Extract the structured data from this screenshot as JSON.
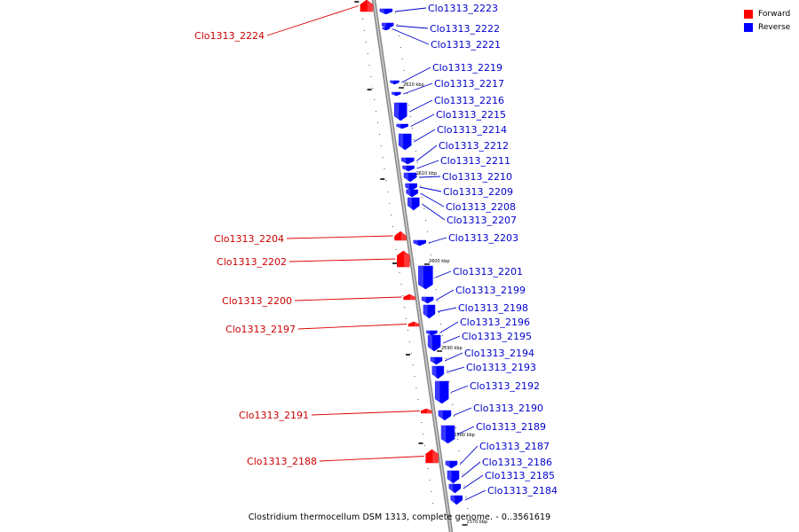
{
  "legend": {
    "forward_label": "Forward",
    "reverse_label": "Reverse",
    "forward_color": "#ff0000",
    "reverse_color": "#0000ff"
  },
  "caption": "Clostridium thermocellum DSM 1313, complete genome. - 0..3561619",
  "ticks": [
    "2620 kbp",
    "2610 kbp",
    "2600 kbp",
    "2590 kbp",
    "2580 kbp",
    "2570 kbp"
  ],
  "forward_genes": [
    "Clo1313_2224",
    "Clo1313_2204",
    "Clo1313_2202",
    "Clo1313_2200",
    "Clo1313_2197",
    "Clo1313_2191",
    "Clo1313_2188"
  ],
  "reverse_genes": [
    "Clo1313_2223",
    "Clo1313_2222",
    "Clo1313_2221",
    "Clo1313_2219",
    "Clo1313_2217",
    "Clo1313_2216",
    "Clo1313_2215",
    "Clo1313_2214",
    "Clo1313_2212",
    "Clo1313_2211",
    "Clo1313_2210",
    "Clo1313_2209",
    "Clo1313_2208",
    "Clo1313_2207",
    "Clo1313_2203",
    "Clo1313_2201",
    "Clo1313_2199",
    "Clo1313_2198",
    "Clo1313_2196",
    "Clo1313_2195",
    "Clo1313_2194",
    "Clo1313_2193",
    "Clo1313_2192",
    "Clo1313_2190",
    "Clo1313_2189",
    "Clo1313_2187",
    "Clo1313_2186",
    "Clo1313_2185",
    "Clo1313_2184"
  ]
}
